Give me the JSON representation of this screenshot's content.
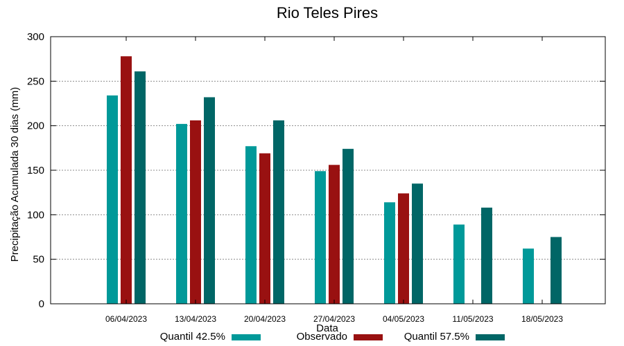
{
  "chart_data": {
    "type": "bar",
    "title": "Rio Teles Pires",
    "xlabel": "Data",
    "ylabel": "Precipitação Acumulada 30 dias (mm)",
    "ylim": [
      0,
      300
    ],
    "yticks": [
      0,
      50,
      100,
      150,
      200,
      250,
      300
    ],
    "grid": true,
    "legend_position": "bottom",
    "categories": [
      "06/04/2023",
      "13/04/2023",
      "20/04/2023",
      "27/04/2023",
      "04/05/2023",
      "11/05/2023",
      "18/05/2023"
    ],
    "series": [
      {
        "name": "Quantil 42.5%",
        "color": "#009999",
        "values": [
          234,
          202,
          177,
          149,
          114,
          89,
          62
        ]
      },
      {
        "name": "Observado",
        "color": "#991111",
        "values": [
          278,
          206,
          169,
          156,
          124,
          null,
          null
        ]
      },
      {
        "name": "Quantil 57.5%",
        "color": "#006666",
        "values": [
          261,
          232,
          206,
          174,
          135,
          108,
          75
        ]
      }
    ]
  }
}
